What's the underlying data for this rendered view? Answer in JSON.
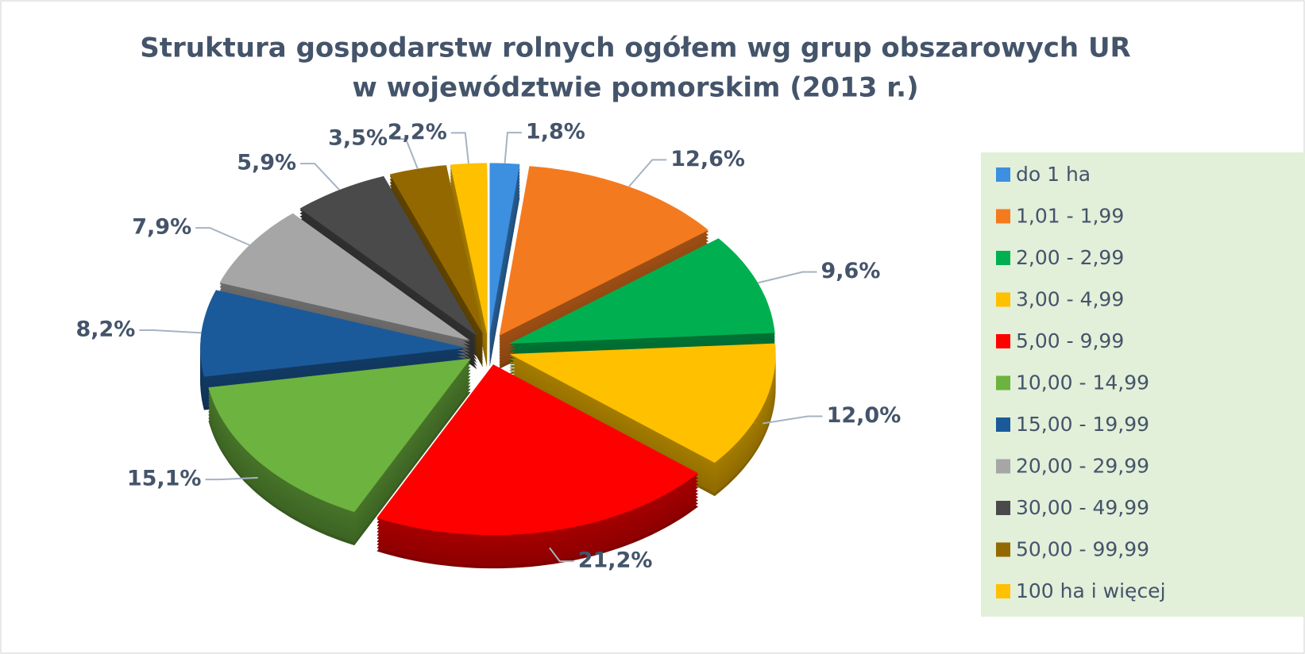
{
  "chart_data": {
    "type": "pie3d",
    "title": "Struktura gospodarstw rolnych ogółem wg grup obszarowych UR",
    "subtitle": "w województwie pomorskim (2013 r.)",
    "categories": [
      "do 1 ha",
      "1,01 - 1,99",
      "2,00 - 2,99",
      "3,00 - 4,99",
      "5,00 - 9,99",
      "10,00 - 14,99",
      "15,00 - 19,99",
      "20,00 - 29,99",
      "30,00 - 49,99",
      "50,00 - 99,99",
      "100 ha i więcej"
    ],
    "values": [
      1.8,
      12.6,
      9.6,
      12.0,
      21.2,
      15.1,
      8.2,
      7.9,
      5.9,
      3.5,
      2.2
    ],
    "value_labels": [
      "1,8%",
      "12,6%",
      "9,6%",
      "12,0%",
      "21,2%",
      "15,1%",
      "8,2%",
      "7,9%",
      "5,9%",
      "3,5%",
      "2,2%"
    ],
    "colors": [
      "#3d8fe0",
      "#f47a1f",
      "#00b050",
      "#ffc000",
      "#ff0000",
      "#6db33f",
      "#1b5a9a",
      "#a6a6a6",
      "#4a4a4a",
      "#946800",
      "#ffc000"
    ],
    "legend": "right"
  }
}
